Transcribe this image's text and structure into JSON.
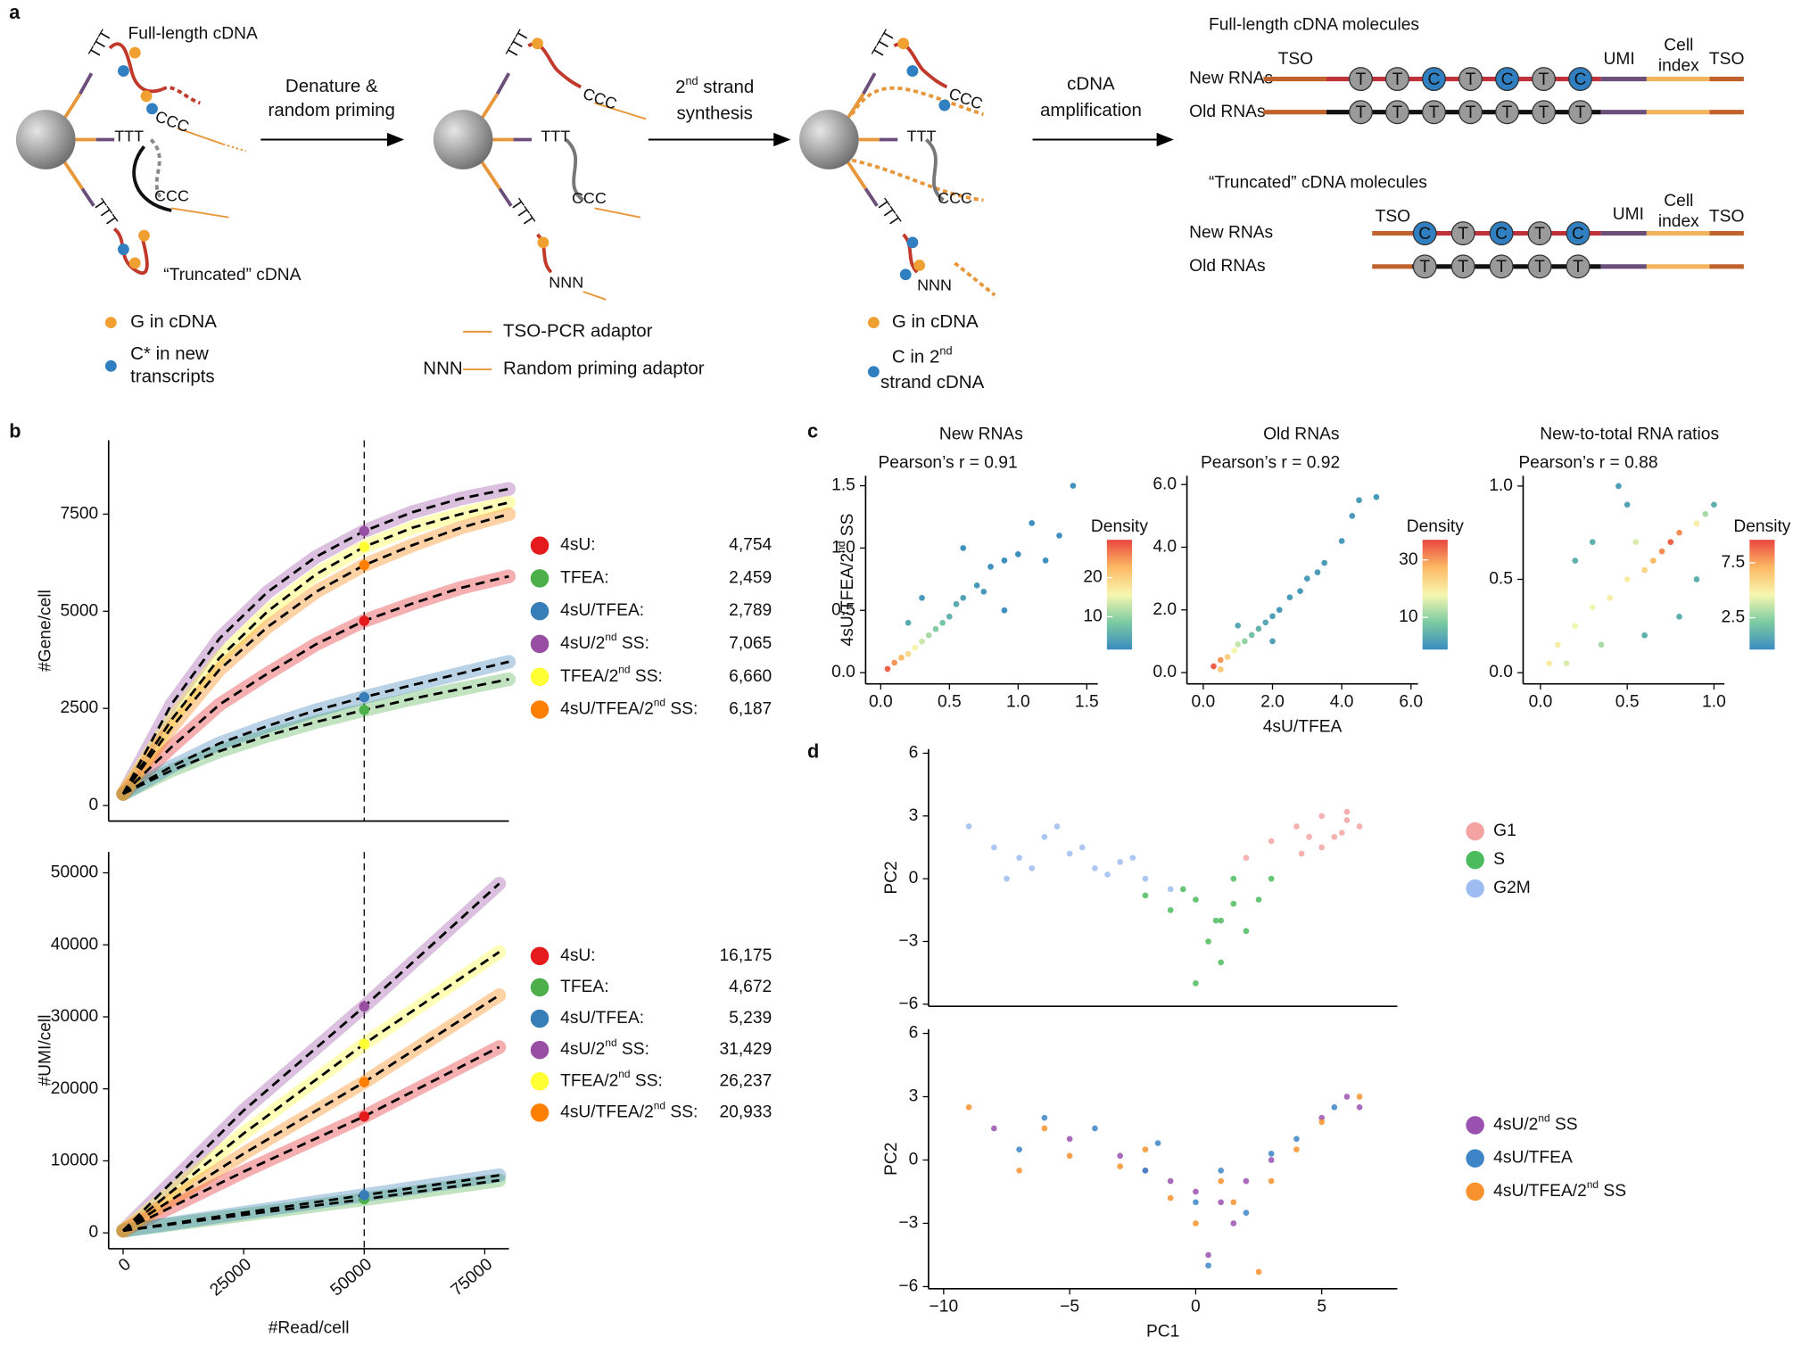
{
  "diagram": {
    "label": "a",
    "full_length": "Full-length cDNA",
    "truncated": "“Truncated” cDNA",
    "poly_t": "TTT",
    "poly_c": "CCC",
    "random": "NNN",
    "steps": [
      [
        "Denature &",
        "random priming"
      ],
      [
        "2nd strand",
        "synthesis"
      ],
      [
        "cDNA",
        "amplification"
      ]
    ],
    "legend1": [
      "G in cDNA",
      "C* in new",
      "transcripts"
    ],
    "legend2": [
      "TSO-PCR adaptor",
      "NNN",
      "Random priming adaptor"
    ],
    "legend3": [
      "G in cDNA",
      "C in 2nd",
      "strand cDNA"
    ],
    "molecules": [
      {
        "title": "Full-length cDNA molecules",
        "tso_left": "TSO",
        "umi": "UMI",
        "index": [
          "Cell",
          "index"
        ],
        "tso_right": "TSO",
        "rows": [
          {
            "name": "New RNAs",
            "bases": [
              "T",
              "T",
              "C",
              "T",
              "C",
              "T",
              "C"
            ]
          },
          {
            "name": "Old RNAs",
            "bases": [
              "T",
              "T",
              "T",
              "T",
              "T",
              "T",
              "T"
            ]
          }
        ]
      },
      {
        "title": "“Truncated” cDNA molecules",
        "tso_left": "TSO",
        "umi": "UMI",
        "index": [
          "Cell",
          "index"
        ],
        "tso_right": "TSO",
        "rows": [
          {
            "name": "New RNAs",
            "bases": [
              "C",
              "T",
              "C",
              "T",
              "C"
            ]
          },
          {
            "name": "Old RNAs",
            "bases": [
              "T",
              "T",
              "T",
              "T",
              "T"
            ]
          }
        ]
      }
    ]
  },
  "chart_data": [
    {
      "type": "line",
      "panel": "b",
      "ylabel": "#Gene/cell",
      "xlim": [
        -3000,
        80000
      ],
      "ylim": [
        -400,
        9400
      ],
      "yticks": [
        0,
        2500,
        5000,
        7500
      ],
      "cut_x": 50000,
      "x": [
        0,
        10000,
        20000,
        30000,
        40000,
        50000,
        60000,
        70000,
        80000
      ],
      "series": [
        {
          "name": "4sU:",
          "color": "#e41a1c",
          "values": [
            300,
            1500,
            2600,
            3400,
            4150,
            4754,
            5200,
            5600,
            5900
          ],
          "cut_value": 4754,
          "cut_label": "4,754"
        },
        {
          "name": "TFEA:",
          "color": "#4daf4a",
          "values": [
            300,
            900,
            1400,
            1800,
            2150,
            2459,
            2750,
            3000,
            3250
          ],
          "cut_value": 2459,
          "cut_label": "2,459"
        },
        {
          "name": "4sU/TFEA:",
          "color": "#377eb8",
          "values": [
            300,
            1000,
            1600,
            2050,
            2450,
            2789,
            3100,
            3400,
            3700
          ],
          "cut_value": 2789,
          "cut_label": "2,789"
        },
        {
          "name": "4sU/2nd SS:",
          "color": "#984ea3",
          "values": [
            300,
            2600,
            4300,
            5500,
            6400,
            7065,
            7550,
            7900,
            8150
          ],
          "cut_value": 7065,
          "cut_label": "7,065"
        },
        {
          "name": "TFEA/2nd SS:",
          "color": "#ffff33",
          "values": [
            300,
            2200,
            3800,
            5000,
            5950,
            6660,
            7150,
            7500,
            7800
          ],
          "cut_value": 6660,
          "cut_label": "6,660"
        },
        {
          "name": "4sU/TFEA/2nd SS:",
          "color": "#ff7f00",
          "values": [
            300,
            2000,
            3500,
            4600,
            5500,
            6187,
            6700,
            7150,
            7500
          ],
          "cut_value": 6187,
          "cut_label": "6,187"
        }
      ]
    },
    {
      "type": "line",
      "ylabel": "#UMI/cell",
      "xlabel": "#Read/cell",
      "xlim": [
        -3000,
        80000
      ],
      "ylim": [
        -2200,
        52900
      ],
      "xticks": [
        0,
        25000,
        50000,
        75000
      ],
      "yticks": [
        0,
        10000,
        20000,
        30000,
        40000,
        50000
      ],
      "cut_x": 50000,
      "x": [
        0,
        25000,
        50000,
        78000
      ],
      "series": [
        {
          "name": "4sU:",
          "color": "#e41a1c",
          "values": [
            300,
            8500,
            16175,
            25800
          ],
          "cut_value": 16175,
          "cut_label": "16,175"
        },
        {
          "name": "TFEA:",
          "color": "#4daf4a",
          "values": [
            300,
            2500,
            4672,
            7300
          ],
          "cut_value": 4672,
          "cut_label": "4,672"
        },
        {
          "name": "4sU/TFEA:",
          "color": "#377eb8",
          "values": [
            300,
            2800,
            5239,
            8000
          ],
          "cut_value": 5239,
          "cut_label": "5,239"
        },
        {
          "name": "4sU/2nd SS:",
          "color": "#984ea3",
          "values": [
            300,
            17000,
            31429,
            48500
          ],
          "cut_value": 31429,
          "cut_label": "31,429"
        },
        {
          "name": "TFEA/2nd SS:",
          "color": "#ffff33",
          "values": [
            300,
            13800,
            26237,
            39000
          ],
          "cut_value": 26237,
          "cut_label": "26,237"
        },
        {
          "name": "4sU/TFEA/2nd SS:",
          "color": "#ff7f00",
          "values": [
            300,
            11000,
            20933,
            33000
          ],
          "cut_value": 20933,
          "cut_label": "20,933"
        }
      ]
    },
    {
      "type": "density",
      "panel": "c",
      "title": "New RNAs",
      "annotation": "Pearson’s r = 0.91",
      "ylabel": "4sU/TFEA/2nd SS",
      "xlim": [
        -0.11,
        1.58
      ],
      "ylim": [
        -0.09,
        1.58
      ],
      "xticks": [
        {
          "value": 0,
          "label": "0.0"
        },
        {
          "value": 0.5,
          "label": "0.5"
        },
        {
          "value": 1,
          "label": "1.0"
        },
        {
          "value": 1.5,
          "label": "1.5"
        }
      ],
      "yticks": [
        {
          "value": 0,
          "label": "0.0"
        },
        {
          "value": 0.5,
          "label": "0.5"
        },
        {
          "value": 1,
          "label": "1.0"
        },
        {
          "value": 1.5,
          "label": "1.5"
        }
      ],
      "colorbar_label": "Density",
      "zlim": [
        1.6,
        29.7
      ],
      "zticks": [
        10,
        20
      ],
      "colormap": [
        "#3a8cc0",
        "#7ccba2",
        "#f7f7b0",
        "#fdb863",
        "#e8473f"
      ],
      "x": [
        0.05,
        0.1,
        0.15,
        0.2,
        0.25,
        0.3,
        0.35,
        0.4,
        0.45,
        0.5,
        0.55,
        0.6,
        0.7,
        0.75,
        0.8,
        0.9,
        1.0,
        1.1,
        1.2,
        1.3,
        1.4,
        0.6,
        0.9,
        0.3,
        0.2
      ],
      "y": [
        0.03,
        0.08,
        0.12,
        0.15,
        0.2,
        0.25,
        0.3,
        0.35,
        0.4,
        0.45,
        0.55,
        0.6,
        0.7,
        0.65,
        0.85,
        0.9,
        0.95,
        1.2,
        0.9,
        1.1,
        1.5,
        1.0,
        0.5,
        0.6,
        0.4
      ],
      "density": [
        28,
        25,
        22,
        19,
        16,
        13,
        11,
        9,
        8,
        6,
        5,
        4,
        3,
        3,
        2,
        2,
        2,
        2,
        2,
        2,
        2,
        2,
        2,
        3,
        5
      ]
    },
    {
      "type": "density",
      "title": "Old RNAs",
      "annotation": "Pearson’s r = 0.92",
      "xlabel": "4sU/TFEA",
      "xlim": [
        -0.47,
        6.2
      ],
      "ylim": [
        -0.36,
        6.28
      ],
      "xticks": [
        {
          "value": 0,
          "label": "0.0"
        },
        {
          "value": 2,
          "label": "2.0"
        },
        {
          "value": 4,
          "label": "4.0"
        },
        {
          "value": 6,
          "label": "6.0"
        }
      ],
      "yticks": [
        {
          "value": 0,
          "label": "0.0"
        },
        {
          "value": 2,
          "label": "2.0"
        },
        {
          "value": 4,
          "label": "4.0"
        },
        {
          "value": 6,
          "label": "6.0"
        }
      ],
      "colorbar_label": "Density",
      "zlim": [
        -1.2,
        37
      ],
      "zticks": [
        10,
        30
      ],
      "colormap": [
        "#3a8cc0",
        "#7ccba2",
        "#f7f7b0",
        "#fdb863",
        "#e8473f"
      ],
      "x": [
        0.3,
        0.5,
        0.7,
        0.9,
        1.0,
        1.2,
        1.4,
        1.6,
        1.8,
        2.0,
        2.2,
        2.5,
        2.8,
        3.0,
        3.3,
        3.5,
        4.0,
        4.3,
        4.5,
        5.0,
        1.0,
        2.0,
        0.5
      ],
      "y": [
        0.2,
        0.4,
        0.5,
        0.7,
        0.9,
        1.0,
        1.2,
        1.4,
        1.6,
        1.8,
        2.0,
        2.4,
        2.6,
        3.0,
        3.2,
        3.5,
        4.2,
        5.0,
        5.5,
        5.6,
        1.5,
        1.0,
        0.1
      ],
      "density": [
        35,
        30,
        24,
        18,
        14,
        10,
        7,
        5,
        3,
        2,
        1,
        1,
        1,
        1,
        1,
        1,
        1,
        1,
        1,
        1,
        3,
        2,
        25
      ]
    },
    {
      "type": "density",
      "title": "New-to-total RNA ratios",
      "annotation": "Pearson’s r = 0.88",
      "xlim": [
        -0.1,
        1.06
      ],
      "ylim": [
        -0.06,
        1.055
      ],
      "xticks": [
        {
          "value": 0,
          "label": "0.0"
        },
        {
          "value": 0.5,
          "label": "0.5"
        },
        {
          "value": 1,
          "label": "1.0"
        }
      ],
      "yticks": [
        {
          "value": 0,
          "label": "0.0"
        },
        {
          "value": 0.5,
          "label": "0.5"
        },
        {
          "value": 1,
          "label": "1.0"
        }
      ],
      "colorbar_label": "Density",
      "zlim": [
        -0.4,
        9.6
      ],
      "zticks": [
        2.5,
        7.5
      ],
      "colormap": [
        "#3a8cc0",
        "#7ccba2",
        "#f7f7b0",
        "#fdb863",
        "#e8473f"
      ],
      "x": [
        0.75,
        0.7,
        0.8,
        0.65,
        0.6,
        0.5,
        0.4,
        0.3,
        0.2,
        0.1,
        0.05,
        0.15,
        0.9,
        0.95,
        1.0,
        0.3,
        0.5,
        0.8,
        0.6,
        0.2,
        0.9,
        0.45,
        0.35,
        0.55
      ],
      "y": [
        0.7,
        0.65,
        0.75,
        0.6,
        0.55,
        0.5,
        0.4,
        0.35,
        0.25,
        0.15,
        0.05,
        0.05,
        0.8,
        0.85,
        0.9,
        0.7,
        0.9,
        0.3,
        0.2,
        0.6,
        0.5,
        1.0,
        0.15,
        0.7
      ],
      "density": [
        9,
        8,
        8,
        7,
        6,
        5,
        5,
        4.5,
        4.5,
        5,
        5,
        4,
        5,
        3,
        1,
        1,
        0.5,
        1,
        1,
        1,
        1,
        0.3,
        3,
        4
      ]
    },
    {
      "type": "scatter",
      "panel": "d",
      "ylabel": "PC2",
      "xlim": [
        -10.6,
        8.0
      ],
      "ylim": [
        -6.1,
        6.2
      ],
      "yticks": [
        {
          "value": -6,
          "label": "−6"
        },
        {
          "value": -3,
          "label": "−3"
        },
        0,
        3,
        6
      ],
      "series": [
        {
          "name": "G1",
          "color": "#f4a3a3",
          "x": [
            4,
            5,
            5.5,
            6,
            6.5,
            5,
            4.5,
            3,
            2,
            6,
            5.8,
            4.2
          ],
          "y": [
            2.5,
            3,
            2,
            2.8,
            2.5,
            1.5,
            2,
            1.8,
            1,
            3.2,
            2.2,
            1.2
          ]
        },
        {
          "name": "S",
          "color": "#4cbb5e",
          "x": [
            0,
            1,
            1.5,
            -1,
            2,
            0.5,
            -0.5,
            1,
            2.5,
            3,
            0,
            1.5,
            -2,
            0.8
          ],
          "y": [
            -1,
            -2,
            0,
            -1.5,
            -2.5,
            -3,
            -0.5,
            -4,
            -1,
            0,
            -5,
            -1.2,
            -0.8,
            -2
          ]
        },
        {
          "name": "G2M",
          "color": "#9dbdf2",
          "x": [
            -9,
            -8,
            -7,
            -6,
            -5,
            -4,
            -3,
            -2,
            -1,
            -6.5,
            -5.5,
            -4.5,
            -3.5,
            -7.5,
            -2.5
          ],
          "y": [
            2.5,
            1.5,
            1,
            2,
            1.2,
            0.5,
            0.8,
            0,
            -0.5,
            0.5,
            2.5,
            1.5,
            0.2,
            0,
            1
          ]
        }
      ]
    },
    {
      "type": "scatter",
      "ylabel": "PC2",
      "xlabel": "PC1",
      "xlim": [
        -10.6,
        8.0
      ],
      "ylim": [
        -6.1,
        6.2
      ],
      "xticks": [
        {
          "value": -10,
          "label": "−10"
        },
        {
          "value": -5,
          "label": "−5"
        },
        0,
        5
      ],
      "yticks": [
        {
          "value": -6,
          "label": "−6"
        },
        {
          "value": -3,
          "label": "−3"
        },
        0,
        3,
        6
      ],
      "series": [
        {
          "name": "4sU/2nd SS",
          "color": "#9b51b0",
          "x": [
            -8,
            -5,
            -3,
            -1,
            0,
            1,
            2,
            3,
            5,
            6,
            6.5,
            1.5,
            0.5,
            -2
          ],
          "y": [
            1.5,
            1,
            0.2,
            -1,
            -1.5,
            -2,
            -1,
            0,
            2,
            3,
            2.5,
            -3,
            -4.5,
            -0.5
          ]
        },
        {
          "name": "4sU/TFEA",
          "color": "#3d85c6",
          "x": [
            -7,
            -4,
            -2,
            0,
            1,
            2,
            4,
            5.5,
            -6,
            0.5,
            3,
            -1.5
          ],
          "y": [
            0.5,
            1.5,
            -0.5,
            -2,
            -0.5,
            -2.5,
            1,
            2.5,
            2,
            -5,
            0.3,
            0.8
          ]
        },
        {
          "name": "4sU/TFEA/2nd SS",
          "color": "#f7922f",
          "x": [
            -9,
            -7,
            -5,
            -3,
            -1,
            0,
            1.5,
            2.5,
            4,
            5,
            6.5,
            -6,
            -2,
            1,
            3
          ],
          "y": [
            2.5,
            -0.5,
            0.2,
            -0.3,
            -1.8,
            -3,
            -2,
            -5.3,
            0.5,
            1.8,
            3,
            1.5,
            0.5,
            -1,
            -1
          ]
        }
      ]
    }
  ]
}
